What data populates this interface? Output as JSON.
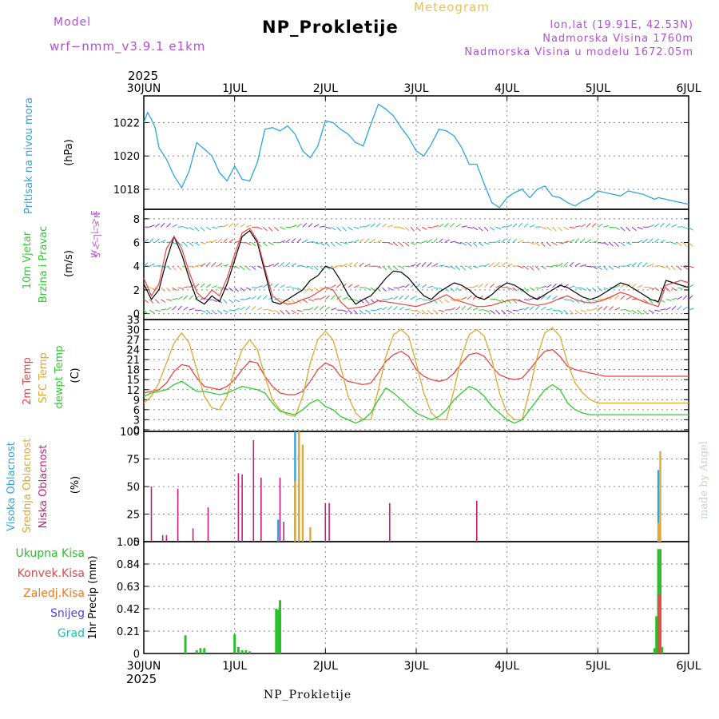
{
  "header": {
    "model_label": "Model",
    "model_version": "wrf−nmm_v3.9.1  e1km",
    "meteogram_label": "Meteogram",
    "station": "NP_Prokletije",
    "lonlat": "lon,lat (19.91E, 42.53N)",
    "elevation": "Nadmorska Visina 1760m",
    "model_elevation": "Nadmorska Visina u modelu 1672.05m",
    "credit": "made by Angel",
    "footer_station": "NP_Prokletije"
  },
  "time_axis": {
    "year": "2025",
    "day_labels": [
      "30JUN",
      "1JUL",
      "2JUL",
      "3JUL",
      "4JUL",
      "5JUL",
      "6JUL"
    ],
    "range_hours": [
      0,
      144
    ]
  },
  "colors": {
    "pressure": "#2ea5e0",
    "wind_speed": "#000000",
    "gust": "#e84545",
    "temp2m": "#e84545",
    "sfc_temp": "#e0a830",
    "dewpt": "#2ecc2e",
    "high_cloud": "#2ea5e0",
    "mid_cloud": "#e0a830",
    "low_cloud": "#c0207a",
    "total_precip": "#2cbf2c",
    "conv_precip": "#e84545",
    "frozen_precip": "#f07820",
    "snow": "#4848e0",
    "hail": "#20c0b0"
  },
  "chart_data": [
    {
      "type": "line",
      "name": "pressure",
      "ylabel_left": "Pritisak na nivou mora",
      "ylabel_unit": "(hPa)",
      "yticks": [
        "1018",
        "1020",
        "1022"
      ],
      "ylim": [
        1016.8,
        1023.6
      ],
      "x": [
        0,
        1,
        2,
        3,
        4,
        6,
        8,
        10,
        12,
        14,
        16,
        18,
        20,
        22,
        24,
        26,
        28,
        30,
        32,
        34,
        36,
        38,
        40,
        42,
        44,
        46,
        48,
        50,
        52,
        54,
        56,
        58,
        60,
        62,
        64,
        66,
        68,
        70,
        72,
        74,
        76,
        78,
        80,
        82,
        84,
        86,
        88,
        90,
        92,
        94,
        96,
        98,
        100,
        102,
        104,
        106,
        108,
        110,
        112,
        114,
        116,
        118,
        120,
        122,
        124,
        126,
        128,
        130,
        132,
        134,
        135,
        136,
        138,
        140,
        142,
        144
      ],
      "y": [
        1022.0,
        1022.6,
        1022.2,
        1021.7,
        1020.5,
        1019.8,
        1018.8,
        1018.1,
        1019.1,
        1020.8,
        1020.4,
        1020.0,
        1019.0,
        1018.5,
        1019.4,
        1018.6,
        1018.5,
        1019.6,
        1021.6,
        1021.7,
        1021.5,
        1021.8,
        1021.3,
        1020.3,
        1019.9,
        1020.6,
        1022.1,
        1022.0,
        1021.6,
        1021.3,
        1020.8,
        1020.6,
        1021.9,
        1023.1,
        1022.8,
        1022.4,
        1021.7,
        1021.1,
        1020.3,
        1020.0,
        1020.7,
        1021.6,
        1021.5,
        1021.2,
        1020.5,
        1019.5,
        1019.5,
        1018.3,
        1017.2,
        1016.9,
        1017.5,
        1017.8,
        1018.0,
        1017.5,
        1018.0,
        1018.2,
        1017.6,
        1017.5,
        1017.2,
        1017.0,
        1017.3,
        1017.5,
        1017.9,
        1017.8,
        1017.7,
        1017.6,
        1017.9,
        1017.8,
        1017.7,
        1017.5,
        1017.4,
        1017.5,
        1017.4,
        1017.3,
        1017.2,
        1017.1
      ]
    },
    {
      "type": "line",
      "name": "wind",
      "ylabel_left": "10m Vjetar",
      "ylabel_left2": "Brzina i Pravac",
      "ylabel_unit": "(m/s)",
      "legend": [
        "W <−|−> E",
        "S <−|−> N"
      ],
      "yticks": [
        "0",
        "2",
        "4",
        "6",
        "8"
      ],
      "ylim": [
        -0.5,
        8.8
      ],
      "series": [
        {
          "name": "speed",
          "x": [
            0,
            2,
            4,
            6,
            8,
            10,
            12,
            14,
            16,
            18,
            20,
            22,
            24,
            26,
            28,
            30,
            32,
            34,
            36,
            38,
            40,
            42,
            44,
            46,
            48,
            50,
            52,
            54,
            56,
            58,
            60,
            62,
            64,
            66,
            68,
            70,
            72,
            74,
            76,
            78,
            80,
            82,
            84,
            86,
            88,
            90,
            92,
            94,
            96,
            98,
            100,
            102,
            104,
            106,
            108,
            110,
            112,
            114,
            116,
            118,
            120,
            122,
            124,
            126,
            128,
            130,
            132,
            134,
            136,
            138,
            140,
            142,
            144
          ],
          "y": [
            2.5,
            1.2,
            2.0,
            4.5,
            6.5,
            5.0,
            3.0,
            1.2,
            0.8,
            1.5,
            1.0,
            2.5,
            4.5,
            6.5,
            7.0,
            6.0,
            3.5,
            1.0,
            0.8,
            1.2,
            1.6,
            2.0,
            2.8,
            3.2,
            4.0,
            3.8,
            2.8,
            1.6,
            0.8,
            1.2,
            1.5,
            2.2,
            3.0,
            3.6,
            3.5,
            3.0,
            2.2,
            1.5,
            1.2,
            1.8,
            2.2,
            2.6,
            2.4,
            2.0,
            1.4,
            1.2,
            1.6,
            2.2,
            2.6,
            2.4,
            2.0,
            1.5,
            1.2,
            1.6,
            2.0,
            2.4,
            2.2,
            1.8,
            1.4,
            1.2,
            1.4,
            1.8,
            2.2,
            2.6,
            2.4,
            2.0,
            1.6,
            1.2,
            1.0,
            2.8,
            2.6,
            2.4,
            2.2
          ]
        },
        {
          "name": "gust",
          "x": [
            0,
            2,
            4,
            6,
            8,
            10,
            12,
            14,
            16,
            18,
            20,
            22,
            24,
            26,
            28,
            30,
            32,
            34,
            36,
            38,
            40,
            42,
            44,
            46,
            48,
            50,
            52,
            54,
            56,
            58,
            60,
            62,
            64,
            66,
            68,
            70,
            72,
            74,
            76,
            78,
            80,
            82,
            84,
            86,
            88,
            90,
            92,
            94,
            96,
            98,
            100,
            102,
            104,
            106,
            108,
            110,
            112,
            114,
            116,
            118,
            120,
            122,
            124,
            126,
            128,
            130,
            132,
            134,
            136,
            138,
            140,
            142,
            144
          ],
          "y": [
            3.0,
            1.5,
            2.5,
            5.5,
            6.5,
            5.5,
            3.5,
            1.8,
            1.2,
            2.0,
            1.5,
            3.0,
            5.0,
            6.8,
            7.2,
            6.2,
            3.8,
            1.5,
            1.0,
            0.8,
            0.9,
            1.2,
            1.4,
            1.8,
            2.2,
            2.0,
            1.0,
            0.4,
            0.5,
            0.6,
            0.8,
            1.1,
            1.0,
            0.9,
            0.8,
            0.7,
            0.6,
            0.8,
            1.0,
            1.3,
            1.6,
            1.2,
            1.0,
            0.8,
            0.6,
            0.6,
            0.7,
            0.9,
            1.1,
            1.2,
            1.0,
            0.8,
            0.7,
            0.8,
            1.0,
            1.3,
            1.5,
            1.2,
            1.0,
            0.9,
            1.0,
            1.2,
            1.5,
            1.8,
            1.6,
            1.3,
            1.0,
            0.8,
            0.6,
            2.4,
            2.6,
            2.8,
            2.6
          ]
        }
      ]
    },
    {
      "type": "line",
      "name": "temperature",
      "ylabel_left": "2m Temp",
      "ylabel_left2": "SFC Temp",
      "ylabel_left3": "dewpt Temp",
      "ylabel_unit": "(C)",
      "yticks": [
        "0",
        "3",
        "6",
        "9",
        "12",
        "15",
        "18",
        "21",
        "24",
        "27",
        "30",
        "33"
      ],
      "ylim": [
        -0.5,
        33
      ],
      "series": [
        {
          "name": "2m Temp",
          "x": [
            0,
            2,
            4,
            6,
            8,
            10,
            12,
            14,
            16,
            18,
            20,
            22,
            24,
            26,
            28,
            30,
            32,
            34,
            36,
            38,
            40,
            42,
            44,
            46,
            48,
            50,
            52,
            54,
            56,
            58,
            60,
            62,
            64,
            66,
            68,
            70,
            72,
            74,
            76,
            78,
            80,
            82,
            84,
            86,
            88,
            90,
            92,
            94,
            96,
            98,
            100,
            102,
            104,
            106,
            108,
            110,
            112,
            114,
            116,
            118,
            120,
            122,
            124,
            126,
            128,
            130,
            132,
            134,
            136,
            138,
            140,
            142,
            144
          ],
          "y": [
            11.0,
            11.5,
            12.0,
            14.0,
            17.5,
            19.5,
            19.0,
            15.5,
            13.0,
            12.5,
            12.0,
            13.0,
            15.0,
            18.0,
            20.5,
            20.0,
            16.0,
            13.0,
            11.0,
            10.5,
            10.5,
            11.5,
            14.5,
            18.0,
            20.0,
            19.0,
            16.0,
            14.5,
            14.0,
            13.5,
            14.0,
            17.0,
            20.5,
            22.5,
            23.5,
            22.0,
            18.0,
            16.0,
            15.0,
            14.5,
            15.0,
            17.0,
            20.0,
            22.5,
            23.0,
            22.0,
            19.0,
            16.5,
            15.5,
            15.0,
            15.5,
            18.0,
            21.0,
            23.5,
            24.0,
            22.0,
            19.0,
            18.0,
            17.5,
            17.0,
            16.5,
            16.0,
            16.0,
            16.0,
            16.0,
            16.0,
            16.0,
            16.0,
            16.0,
            16.0,
            16.0,
            16.0,
            16.0
          ]
        },
        {
          "name": "SFC Temp",
          "x": [
            0,
            2,
            4,
            6,
            8,
            10,
            12,
            14,
            16,
            18,
            20,
            22,
            24,
            26,
            28,
            30,
            32,
            34,
            36,
            38,
            40,
            42,
            44,
            46,
            48,
            50,
            52,
            54,
            56,
            58,
            60,
            62,
            64,
            66,
            68,
            70,
            72,
            74,
            76,
            78,
            80,
            82,
            84,
            86,
            88,
            90,
            92,
            94,
            96,
            98,
            100,
            102,
            104,
            106,
            108,
            110,
            112,
            114,
            116,
            118,
            120,
            122,
            124,
            126,
            128,
            130,
            132,
            134,
            136,
            138,
            140,
            142,
            144
          ],
          "y": [
            8.0,
            10.0,
            14.0,
            20.0,
            26.0,
            29.0,
            26.0,
            18.0,
            10.0,
            6.5,
            6.0,
            10.0,
            18.0,
            24.0,
            27.0,
            24.0,
            16.0,
            9.0,
            6.0,
            4.5,
            4.0,
            10.0,
            20.0,
            27.0,
            29.5,
            27.0,
            19.0,
            10.0,
            5.0,
            3.0,
            3.0,
            12.0,
            22.0,
            28.5,
            30.0,
            28.0,
            20.0,
            11.0,
            5.0,
            3.0,
            3.0,
            12.0,
            22.0,
            28.5,
            30.0,
            28.0,
            21.0,
            11.0,
            5.0,
            3.0,
            3.0,
            12.0,
            22.0,
            29.0,
            30.5,
            28.0,
            20.0,
            14.0,
            11.0,
            9.0,
            8.0,
            8.0,
            8.0,
            8.0,
            8.0,
            8.0,
            8.0,
            8.0,
            8.0,
            8.0,
            8.0,
            8.0,
            8.0
          ]
        },
        {
          "name": "dewpt Temp",
          "x": [
            0,
            2,
            4,
            6,
            8,
            10,
            12,
            14,
            16,
            18,
            20,
            22,
            24,
            26,
            28,
            30,
            32,
            34,
            36,
            38,
            40,
            42,
            44,
            46,
            48,
            50,
            52,
            54,
            56,
            58,
            60,
            62,
            64,
            66,
            68,
            70,
            72,
            74,
            76,
            78,
            80,
            82,
            84,
            86,
            88,
            90,
            92,
            94,
            96,
            98,
            100,
            102,
            104,
            106,
            108,
            110,
            112,
            114,
            116,
            118,
            120,
            122,
            124,
            126,
            128,
            130,
            132,
            134,
            136,
            138,
            140,
            142,
            144
          ],
          "y": [
            10.0,
            11.0,
            11.5,
            12.0,
            13.5,
            14.5,
            13.0,
            11.5,
            11.5,
            11.0,
            10.5,
            11.0,
            12.0,
            13.0,
            12.5,
            12.0,
            11.0,
            8.0,
            5.5,
            5.0,
            4.5,
            6.0,
            8.0,
            9.0,
            7.0,
            6.0,
            4.0,
            3.0,
            2.0,
            3.0,
            5.0,
            9.0,
            12.5,
            11.0,
            9.0,
            7.0,
            5.0,
            4.0,
            3.0,
            4.0,
            6.0,
            9.0,
            11.0,
            13.0,
            12.0,
            10.0,
            7.0,
            5.0,
            3.0,
            2.0,
            3.0,
            6.0,
            9.0,
            12.0,
            13.5,
            12.0,
            8.0,
            6.0,
            5.0,
            4.5,
            4.5,
            4.5,
            4.5,
            4.5,
            4.5,
            4.5,
            4.5,
            4.5,
            4.5,
            4.5,
            4.5,
            4.5,
            4.5
          ]
        }
      ]
    },
    {
      "type": "bar",
      "name": "cloud",
      "ylabel_left": "Visoka Oblacnost",
      "ylabel_left2": "Srednja Oblacnost",
      "ylabel_left3": "Niska Oblacnost",
      "ylabel_unit": "(%)",
      "yticks": [
        "0",
        "25",
        "50",
        "75",
        "100"
      ],
      "ylim": [
        0,
        100
      ],
      "series": [
        {
          "name": "low",
          "x": [
            2,
            5,
            6,
            9,
            13,
            17,
            25,
            26,
            29,
            31,
            36,
            37,
            48,
            49,
            65,
            88
          ],
          "y": [
            50,
            6,
            6,
            48,
            12,
            31,
            62,
            61,
            92,
            58,
            58,
            18,
            35,
            35,
            35,
            37
          ]
        },
        {
          "name": "high",
          "x": [
            35.5,
            40,
            41,
            136
          ],
          "y": [
            20,
            100,
            100,
            65
          ]
        },
        {
          "name": "mid",
          "x": [
            40,
            41,
            42,
            44,
            136,
            136.5
          ],
          "y": [
            55,
            100,
            88,
            13,
            17,
            82
          ]
        }
      ]
    },
    {
      "type": "bar",
      "name": "precip",
      "ylabel_left": "1hr Precip (mm)",
      "legend": [
        "Ukupna Kisa",
        "Konvek.Kisa",
        "Zaledj.Kisa",
        "Snijeg",
        "Grad"
      ],
      "yticks": [
        "0",
        "0.21",
        "0.42",
        "0.63",
        "0.84",
        "1.05"
      ],
      "ylim": [
        0,
        1.05
      ],
      "series": [
        {
          "name": "total",
          "x": [
            11,
            14,
            15,
            16,
            24,
            25,
            26,
            27,
            28,
            35,
            35.5,
            36,
            135,
            135.5,
            136,
            136.5,
            137
          ],
          "y": [
            0.17,
            0.03,
            0.05,
            0.05,
            0.18,
            0.06,
            0.03,
            0.03,
            0.02,
            0.42,
            0.41,
            0.5,
            0.05,
            0.35,
            0.98,
            0.98,
            0.06
          ]
        },
        {
          "name": "conv",
          "x": [
            136,
            136.5
          ],
          "y": [
            0.55,
            0.56
          ]
        }
      ]
    }
  ]
}
